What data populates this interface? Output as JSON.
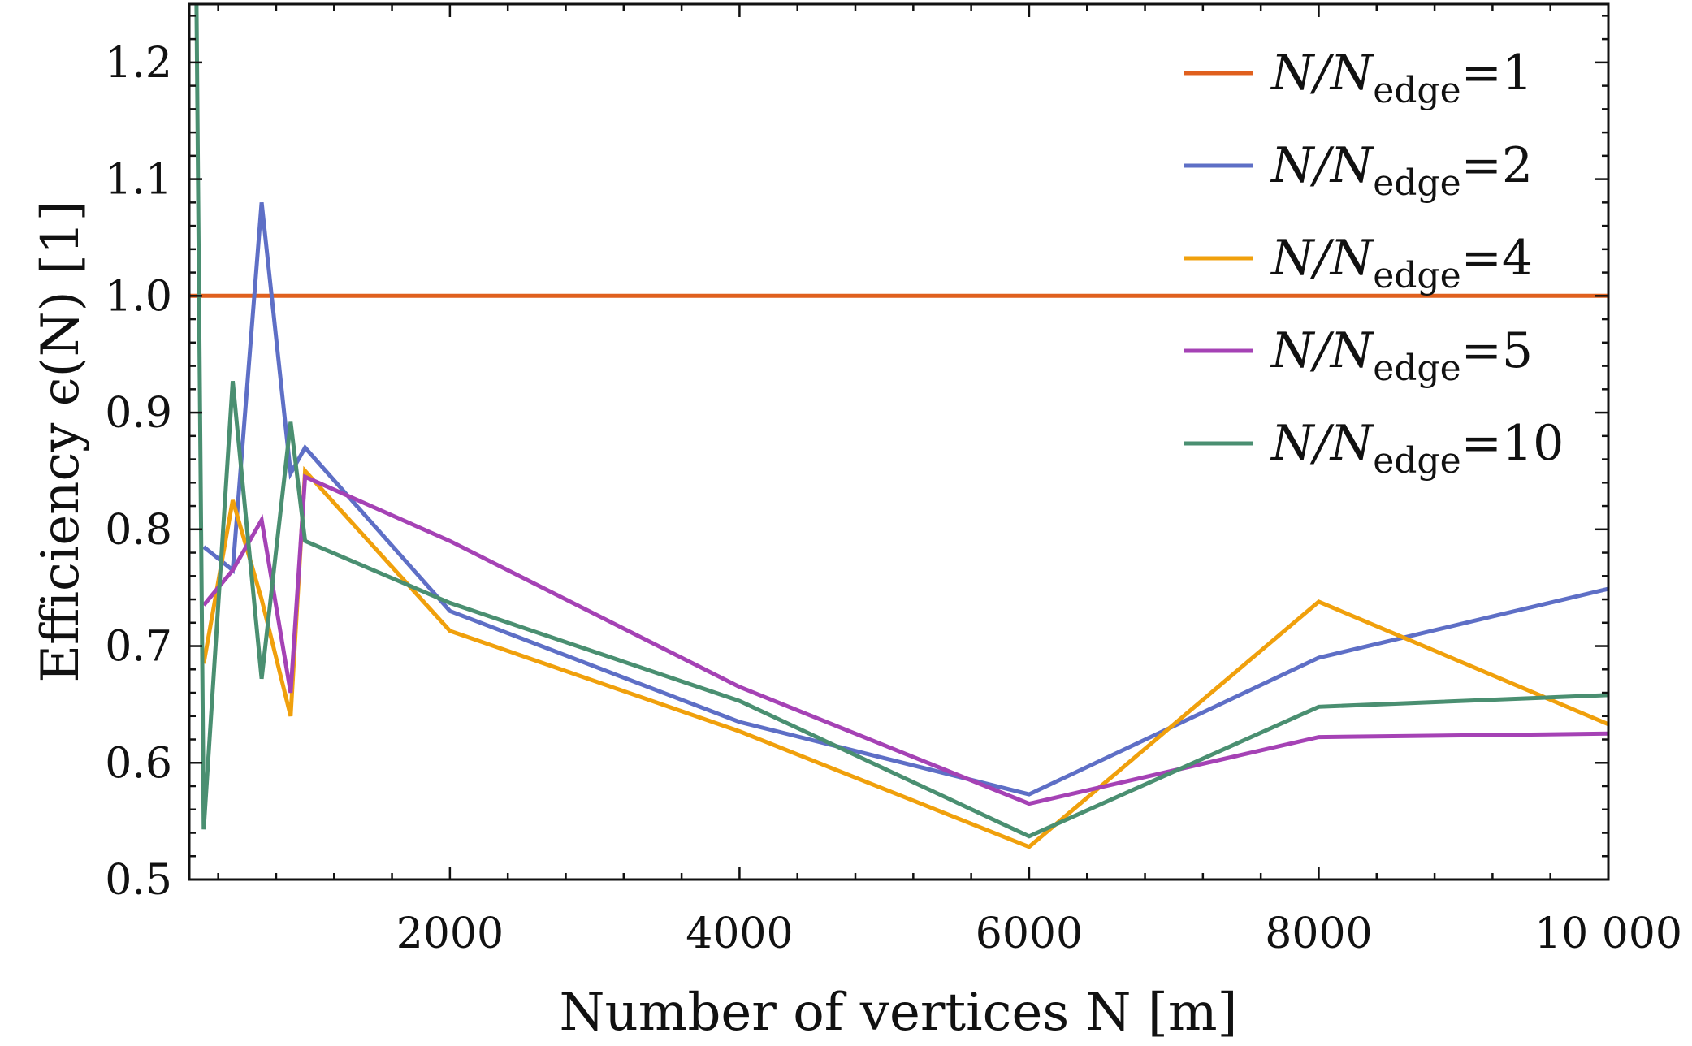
{
  "chart_data": {
    "type": "line",
    "xlabel": "Number of vertices N [m]",
    "ylabel": "Efficiency ϵ(N) [1]",
    "xlim": [
      200,
      10000
    ],
    "ylim": [
      0.5,
      1.25
    ],
    "x_ticks": [
      2000,
      4000,
      6000,
      8000,
      10000
    ],
    "x_tick_labels": [
      "2000",
      "4000",
      "6000",
      "8000",
      "10 000"
    ],
    "y_ticks": [
      0.5,
      0.6,
      0.7,
      0.8,
      0.9,
      1.0,
      1.1,
      1.2
    ],
    "y_tick_labels": [
      "0.5",
      "0.6",
      "0.7",
      "0.8",
      "0.9",
      "1.0",
      "1.1",
      "1.2"
    ],
    "grid": false,
    "legend_position": "top-right",
    "series": [
      {
        "name": "N/N_edge=1",
        "legend_prefix": "N/N",
        "legend_sub": "edge",
        "legend_suffix": "=1",
        "color": "#e0601e",
        "x": [
          200,
          10000
        ],
        "y": [
          1.0,
          1.0
        ]
      },
      {
        "name": "N/N_edge=2",
        "legend_prefix": "N/N",
        "legend_sub": "edge",
        "legend_suffix": "=2",
        "color": "#5e6fc6",
        "x": [
          300,
          500,
          700,
          900,
          1000,
          2000,
          4000,
          6000,
          8000,
          10000
        ],
        "y": [
          0.785,
          0.765,
          1.08,
          0.848,
          0.87,
          0.73,
          0.635,
          0.573,
          0.69,
          0.749
        ]
      },
      {
        "name": "N/N_edge=4",
        "legend_prefix": "N/N",
        "legend_sub": "edge",
        "legend_suffix": "=4",
        "color": "#f0a00c",
        "x": [
          300,
          500,
          700,
          900,
          1000,
          2000,
          4000,
          6000,
          8000,
          10000
        ],
        "y": [
          0.685,
          0.825,
          0.74,
          0.64,
          0.85,
          0.713,
          0.627,
          0.528,
          0.738,
          0.633
        ]
      },
      {
        "name": "N/N_edge=5",
        "legend_prefix": "N/N",
        "legend_sub": "edge",
        "legend_suffix": "=5",
        "color": "#a542b5",
        "x": [
          300,
          500,
          700,
          900,
          1000,
          2000,
          4000,
          6000,
          8000,
          10000
        ],
        "y": [
          0.735,
          0.765,
          0.808,
          0.66,
          0.845,
          0.79,
          0.665,
          0.565,
          0.622,
          0.625
        ]
      },
      {
        "name": "N/N_edge=10",
        "legend_prefix": "N/N",
        "legend_sub": "edge",
        "legend_suffix": "=10",
        "color": "#4a8f71",
        "x": [
          250,
          300,
          500,
          700,
          900,
          1000,
          2000,
          4000,
          6000,
          8000,
          10000
        ],
        "y": [
          1.25,
          0.543,
          0.927,
          0.672,
          0.892,
          0.79,
          0.737,
          0.653,
          0.537,
          0.648,
          0.658
        ]
      }
    ]
  }
}
